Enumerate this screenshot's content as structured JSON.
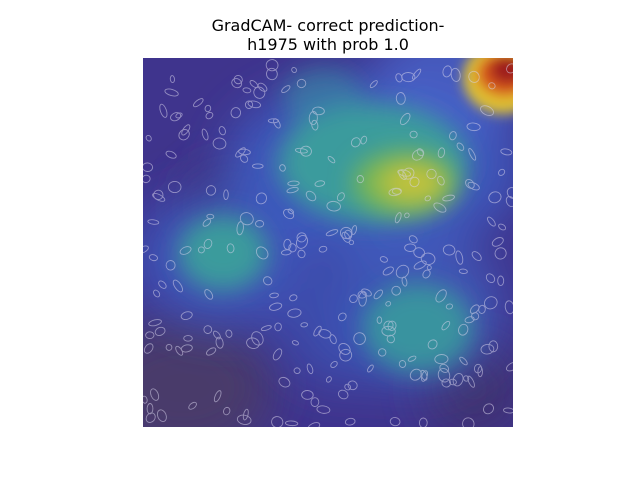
{
  "figure": {
    "title_line1": "GradCAM- correct prediction-",
    "title_line2": "h1975 with prob 1.0"
  },
  "colors": {
    "base_overlay": "#3a2f8a",
    "hot_red": "#b22222",
    "warm_yellow": "#c9c33a",
    "cool_teal": "#3aa39a",
    "cell_outline": "#d8d4ec"
  }
}
